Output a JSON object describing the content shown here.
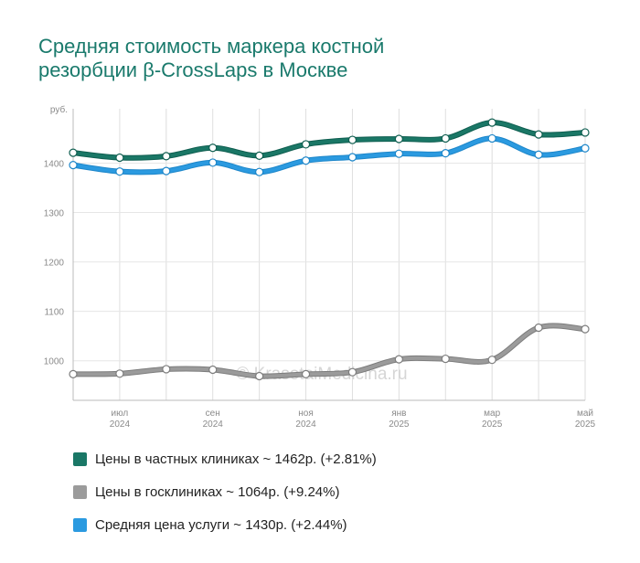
{
  "chart_data": {
    "type": "line",
    "title_lines": [
      "Средняя стоимость маркера костной",
      "резорбции β-CrossLaps в Москве"
    ],
    "y_unit": "руб.",
    "ylim": [
      920,
      1510
    ],
    "y_ticks": [
      1000,
      1100,
      1200,
      1300,
      1400
    ],
    "x_ticks": [
      {
        "index": 1,
        "month": "июл",
        "year": "2024"
      },
      {
        "index": 3,
        "month": "сен",
        "year": "2024"
      },
      {
        "index": 5,
        "month": "ноя",
        "year": "2024"
      },
      {
        "index": 7,
        "month": "янв",
        "year": "2025"
      },
      {
        "index": 9,
        "month": "мар",
        "year": "2025"
      },
      {
        "index": 11,
        "month": "май",
        "year": "2025"
      }
    ],
    "x_count": 12,
    "grid": true,
    "legend_position": "bottom",
    "watermark": "© KrasotaiMedicina.ru",
    "series": [
      {
        "name": "Цены в госклиниках ~ 1064р. (+9.24%)",
        "color": "#9b9b9b",
        "dark": "#7d7d7d",
        "values": [
          973,
          974,
          983,
          982,
          969,
          973,
          977,
          1003,
          1004,
          1002,
          1067,
          1064
        ]
      },
      {
        "name": "Средняя цена услуги ~ 1430р. (+2.44%)",
        "color": "#2b9ae0",
        "dark": "#1d86c9",
        "values": [
          1396,
          1383,
          1384,
          1401,
          1382,
          1405,
          1412,
          1419,
          1420,
          1450,
          1417,
          1430
        ]
      },
      {
        "name": "Цены в частных клиниках ~ 1462р. (+2.81%)",
        "color": "#1a7766",
        "dark": "#0f5e50",
        "values": [
          1421,
          1411,
          1414,
          1431,
          1415,
          1438,
          1447,
          1449,
          1450,
          1482,
          1458,
          1462
        ]
      }
    ]
  },
  "legend": [
    {
      "label": "Цены в частных клиниках ~ 1462р. (+2.81%)",
      "color": "#1a7766"
    },
    {
      "label": "Цены в госклиниках ~ 1064р. (+9.24%)",
      "color": "#9b9b9b"
    },
    {
      "label": "Средняя цена услуги ~ 1430р. (+2.44%)",
      "color": "#2b9ae0"
    }
  ]
}
